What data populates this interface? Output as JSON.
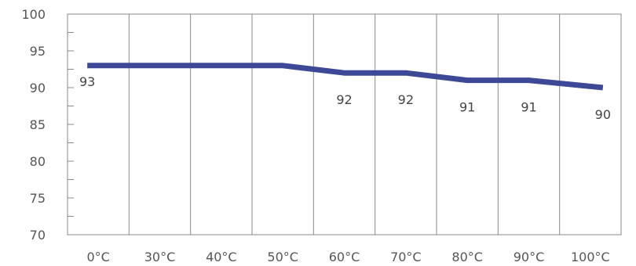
{
  "chart_data": {
    "type": "line",
    "title": "",
    "xlabel": "",
    "ylabel": "",
    "categories": [
      "0°C",
      "30°C",
      "40°C",
      "50°C",
      "60°C",
      "70°C",
      "80°C",
      "90°C",
      "100°C"
    ],
    "series": [
      {
        "values": [
          93,
          93,
          93,
          93,
          92,
          92,
          91,
          91,
          90
        ]
      }
    ],
    "data_labels": [
      "93",
      "",
      "",
      "",
      "92",
      "92",
      "91",
      "91",
      "90"
    ],
    "ylim": [
      70,
      100
    ],
    "y_ticks": [
      "70",
      "75",
      "80",
      "85",
      "90",
      "95",
      "100"
    ],
    "grid": "vertical",
    "line_color": "#3d4896",
    "grid_color": "#8a8a8a"
  }
}
